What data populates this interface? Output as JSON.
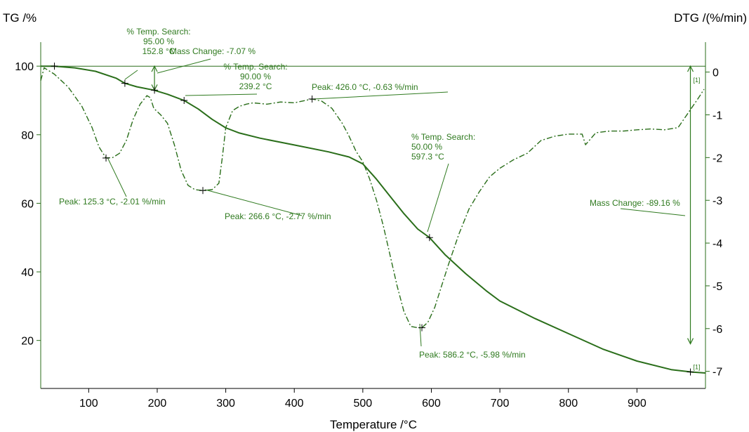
{
  "colors": {
    "curve": "#2a6e1a",
    "annotation": "#2f7a1f",
    "axis": "#000000"
  },
  "chart_data": {
    "type": "line",
    "xlabel": "Temperature /°C",
    "ylabel_left": "TG /%",
    "ylabel_right": "DTG /(%/min)",
    "xlim": [
      30,
      1000
    ],
    "ylim_left": [
      6,
      107
    ],
    "ylim_right": [
      -7.4,
      0.7
    ],
    "x_ticks": [
      100,
      200,
      300,
      400,
      500,
      600,
      700,
      800,
      900
    ],
    "y_ticks_left": [
      20,
      40,
      60,
      80,
      100
    ],
    "y_ticks_right": [
      0,
      -1,
      -2,
      -3,
      -4,
      -5,
      -6,
      -7
    ],
    "grid": false,
    "series": [
      {
        "axis": "left",
        "style": "solid",
        "x": [
          30,
          50,
          80,
          110,
          140,
          152.8,
          170,
          195,
          215,
          239.2,
          260,
          280,
          300,
          320,
          350,
          400,
          450,
          480,
          500,
          520,
          540,
          560,
          580,
          597.3,
          620,
          650,
          680,
          700,
          750,
          800,
          850,
          900,
          950,
          980,
          1000
        ],
        "y": [
          100,
          100,
          99.5,
          98.5,
          96.5,
          95,
          94,
          93,
          91.8,
          90,
          87.5,
          84.5,
          82,
          80.5,
          79,
          77,
          75,
          73.5,
          71.5,
          67,
          62,
          57,
          52.5,
          50,
          45,
          39.5,
          34.5,
          31.5,
          26.5,
          22,
          17.5,
          14,
          11.5,
          10.8,
          10.5
        ]
      },
      {
        "axis": "right",
        "style": "dash-dot",
        "x": [
          30,
          35,
          50,
          70,
          90,
          105,
          115,
          125.3,
          135,
          145,
          155,
          165,
          175,
          185,
          190,
          195,
          205,
          215,
          225,
          235,
          245,
          255,
          266.6,
          280,
          290,
          295,
          300,
          310,
          320,
          330,
          340,
          360,
          380,
          400,
          426,
          440,
          455,
          470,
          480,
          490,
          500,
          510,
          520,
          530,
          540,
          550,
          560,
          570,
          580,
          586.2,
          595,
          605,
          615,
          625,
          640,
          655,
          670,
          685,
          700,
          720,
          740,
          760,
          780,
          800,
          820,
          825,
          840,
          860,
          880,
          900,
          920,
          940,
          960,
          975,
          990,
          998
        ],
        "y": [
          -0.2,
          0.1,
          -0.05,
          -0.35,
          -0.8,
          -1.3,
          -1.75,
          -2.01,
          -2.0,
          -1.9,
          -1.6,
          -1.1,
          -0.75,
          -0.55,
          -0.6,
          -0.85,
          -1.0,
          -1.2,
          -1.7,
          -2.3,
          -2.65,
          -2.75,
          -2.77,
          -2.75,
          -2.6,
          -2.0,
          -1.3,
          -0.9,
          -0.8,
          -0.75,
          -0.72,
          -0.75,
          -0.7,
          -0.72,
          -0.63,
          -0.68,
          -0.85,
          -1.2,
          -1.5,
          -1.85,
          -2.1,
          -2.5,
          -3.0,
          -3.6,
          -4.3,
          -5.0,
          -5.6,
          -5.95,
          -5.98,
          -5.98,
          -5.85,
          -5.5,
          -5.0,
          -4.5,
          -3.8,
          -3.2,
          -2.8,
          -2.45,
          -2.25,
          -2.05,
          -1.9,
          -1.6,
          -1.5,
          -1.45,
          -1.45,
          -1.7,
          -1.42,
          -1.38,
          -1.38,
          -1.35,
          -1.33,
          -1.35,
          -1.3,
          -0.95,
          -0.6,
          -0.4
        ]
      },
      {
        "axis": "left",
        "style": "solid",
        "x": [
          50,
          1000
        ],
        "y": [
          100,
          100
        ]
      }
    ],
    "annotations": [
      {
        "lines": [
          "% Temp. Search:",
          "95.00 %",
          "152.8 °C"
        ],
        "target": {
          "x": 152.8,
          "y": 95,
          "axis": "left"
        }
      },
      {
        "lines": [
          "Mass Change: -7.07 %"
        ],
        "target": {
          "x": 196,
          "y": 96.5,
          "axis": "left"
        }
      },
      {
        "lines": [
          "% Temp. Search:",
          "90.00 %",
          "239.2 °C"
        ],
        "target": {
          "x": 239.2,
          "y": 90,
          "axis": "left"
        }
      },
      {
        "lines": [
          "Peak: 426.0 °C, -0.63 %/min"
        ],
        "target": {
          "x": 426.0,
          "y": -0.63,
          "axis": "right"
        }
      },
      {
        "lines": [
          "Peak: 125.3 °C, -2.01 %/min"
        ],
        "target": {
          "x": 125.3,
          "y": -2.01,
          "axis": "right"
        }
      },
      {
        "lines": [
          "Peak: 266.6 °C, -2.77 %/min"
        ],
        "target": {
          "x": 266.6,
          "y": -2.77,
          "axis": "right"
        }
      },
      {
        "lines": [
          "% Temp. Search:",
          "50.00 %",
          "597.3 °C"
        ],
        "target": {
          "x": 597.3,
          "y": 50,
          "axis": "left"
        }
      },
      {
        "lines": [
          "Mass Change: -89.16 %"
        ],
        "target": {
          "x": 978,
          "y": 50,
          "axis": "left"
        }
      },
      {
        "lines": [
          "Peak: 586.2 °C, -5.98 %/min"
        ],
        "target": {
          "x": 586.2,
          "y": -5.98,
          "axis": "right"
        }
      }
    ],
    "markers": [
      {
        "x": 50,
        "y": 100,
        "axis": "left"
      },
      {
        "x": 152.8,
        "y": 95,
        "axis": "left"
      },
      {
        "x": 196,
        "y": 93,
        "axis": "left"
      },
      {
        "x": 239.2,
        "y": 90,
        "axis": "left"
      },
      {
        "x": 597.3,
        "y": 50,
        "axis": "left"
      },
      {
        "x": 978,
        "y": 10.8,
        "axis": "left"
      },
      {
        "x": 125.3,
        "y": -2.01,
        "axis": "right"
      },
      {
        "x": 266.6,
        "y": -2.77,
        "axis": "right"
      },
      {
        "x": 426.0,
        "y": -0.63,
        "axis": "right"
      },
      {
        "x": 586.2,
        "y": -5.98,
        "axis": "right"
      }
    ],
    "curve_refs": [
      {
        "text": "[1]",
        "x": 980,
        "y": -0.3,
        "axis": "right"
      },
      {
        "text": "[1]",
        "x": 980,
        "y": 10.8,
        "axis": "left"
      }
    ]
  }
}
